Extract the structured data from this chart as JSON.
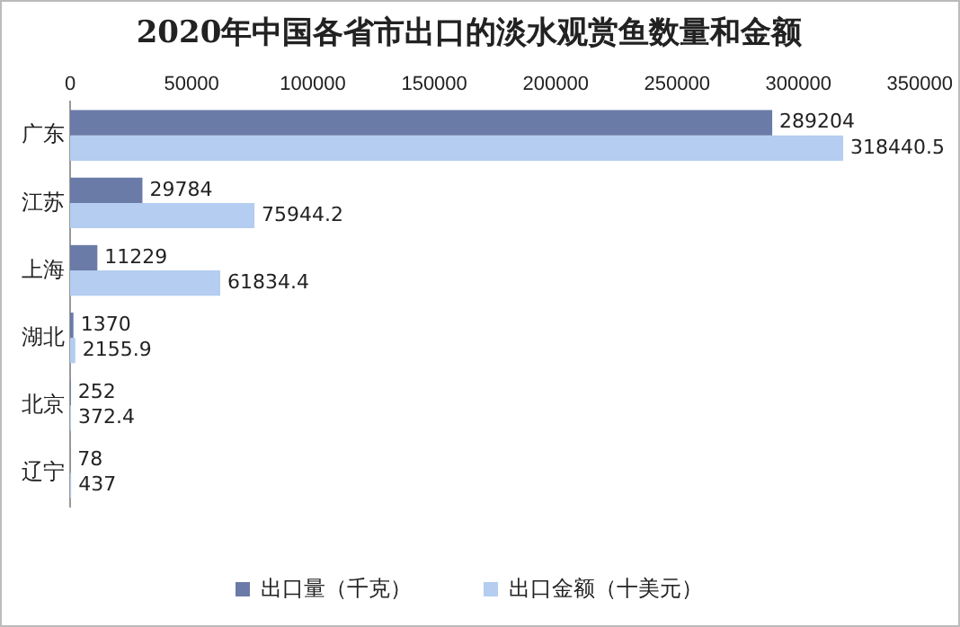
{
  "chart_data": {
    "type": "bar",
    "orientation": "horizontal",
    "title": "2020年中国各省市出口的淡水观赏鱼数量和金额",
    "categories": [
      "广东",
      "江苏",
      "上海",
      "湖北",
      "北京",
      "辽宁"
    ],
    "series": [
      {
        "name": "出口量（千克）",
        "color": "#6b7ba8",
        "values": [
          289204,
          29784,
          11229,
          1370,
          252,
          78
        ]
      },
      {
        "name": "出口金额（十美元）",
        "color": "#b4cdf0",
        "values": [
          318440.5,
          75944.2,
          61834.4,
          2155.9,
          372.4,
          437
        ]
      }
    ],
    "xlim": [
      0,
      350000
    ],
    "xticks": [
      0,
      50000,
      100000,
      150000,
      200000,
      250000,
      300000,
      350000
    ],
    "grid": false,
    "legend": "bottom",
    "data_labels": true
  }
}
